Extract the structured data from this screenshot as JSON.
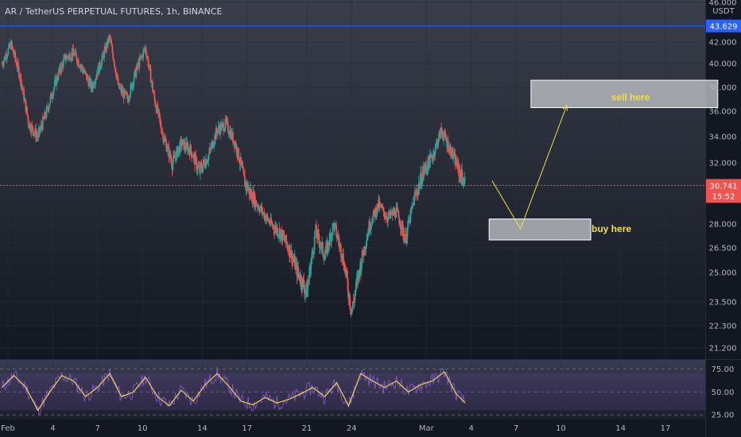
{
  "header": {
    "title": "AR / TetherUS PERPETUAL FUTURES, 1h, BINANCE"
  },
  "colors": {
    "up": "#26a69a",
    "down": "#ef5350",
    "bg": "#131722",
    "line": "#f0e040",
    "rsi": "#7e57c2",
    "blue": "#2962ff"
  },
  "chart_data": [
    {
      "type": "candlestick",
      "title": "AR / TetherUS PERPETUAL FUTURES, 1h, BINANCE",
      "y_unit": "USDT",
      "ylim": [
        20.5,
        46.0
      ],
      "x_domain": [
        0,
        46
      ],
      "y_ticks": [
        "46.000",
        "42.000",
        "40.000",
        "38.000",
        "36.000",
        "34.000",
        "32.000",
        "30.000",
        "28.000",
        "26.500",
        "25.000",
        "23.500",
        "22.300",
        "21.200"
      ],
      "y_tick_values": [
        46.0,
        42.0,
        40.0,
        38.0,
        36.0,
        34.0,
        32.0,
        30.0,
        28.0,
        26.5,
        25.0,
        23.5,
        22.3,
        21.2
      ],
      "x_ticks": [
        {
          "label": "Feb",
          "day": 1
        },
        {
          "label": "4",
          "day": 4
        },
        {
          "label": "7",
          "day": 7
        },
        {
          "label": "10",
          "day": 10
        },
        {
          "label": "14",
          "day": 14
        },
        {
          "label": "17",
          "day": 17
        },
        {
          "label": "21",
          "day": 21
        },
        {
          "label": "24",
          "day": 24
        },
        {
          "label": "Mar",
          "day": 29
        },
        {
          "label": "4",
          "day": 32
        },
        {
          "label": "7",
          "day": 35
        },
        {
          "label": "10",
          "day": 38
        },
        {
          "label": "14",
          "day": 42
        },
        {
          "label": "17",
          "day": 45
        }
      ],
      "close_path": [
        [
          0.6,
          40.0
        ],
        [
          1.2,
          41.8
        ],
        [
          1.8,
          39.0
        ],
        [
          2.4,
          35.0
        ],
        [
          3.0,
          34.0
        ],
        [
          3.6,
          36.0
        ],
        [
          4.2,
          38.5
        ],
        [
          4.8,
          40.5
        ],
        [
          5.4,
          41.0
        ],
        [
          6.0,
          39.5
        ],
        [
          6.6,
          38.0
        ],
        [
          7.2,
          40.0
        ],
        [
          7.8,
          42.5
        ],
        [
          8.4,
          38.0
        ],
        [
          9.0,
          37.0
        ],
        [
          9.6,
          39.5
        ],
        [
          10.2,
          41.5
        ],
        [
          10.8,
          37.0
        ],
        [
          11.4,
          34.0
        ],
        [
          12.0,
          32.0
        ],
        [
          12.6,
          33.5
        ],
        [
          13.2,
          33.0
        ],
        [
          13.8,
          31.5
        ],
        [
          14.4,
          32.5
        ],
        [
          15.0,
          34.5
        ],
        [
          15.6,
          35.0
        ],
        [
          16.2,
          33.5
        ],
        [
          16.8,
          31.0
        ],
        [
          17.4,
          30.0
        ],
        [
          18.0,
          29.0
        ],
        [
          18.6,
          28.0
        ],
        [
          19.2,
          27.5
        ],
        [
          19.8,
          26.5
        ],
        [
          20.4,
          25.0
        ],
        [
          21.0,
          24.0
        ],
        [
          21.6,
          27.5
        ],
        [
          22.2,
          26.0
        ],
        [
          22.8,
          28.0
        ],
        [
          23.4,
          26.0
        ],
        [
          24.0,
          23.0
        ],
        [
          24.6,
          25.5
        ],
        [
          25.2,
          28.0
        ],
        [
          25.8,
          29.5
        ],
        [
          26.4,
          28.5
        ],
        [
          27.0,
          29.0
        ],
        [
          27.6,
          27.0
        ],
        [
          28.2,
          30.0
        ],
        [
          28.8,
          31.5
        ],
        [
          29.4,
          32.5
        ],
        [
          30.0,
          34.5
        ],
        [
          30.6,
          33.0
        ],
        [
          31.2,
          31.5
        ],
        [
          31.6,
          30.8
        ]
      ],
      "current_price": "30.741",
      "current_price_value": 30.741,
      "countdown": "15:52",
      "upper_price": "43.629",
      "upper_price_value": 43.629
    },
    {
      "type": "line",
      "name": "RSI",
      "ylim": [
        20,
        85
      ],
      "y_ticks": [
        "75.00",
        "50.00",
        "25.00"
      ],
      "y_tick_values": [
        75,
        50,
        25
      ],
      "band": [
        30,
        70
      ],
      "rsi_points": [
        [
          0.6,
          55
        ],
        [
          1.4,
          68
        ],
        [
          2.2,
          55
        ],
        [
          3.0,
          30
        ],
        [
          3.8,
          50
        ],
        [
          4.6,
          68
        ],
        [
          5.4,
          62
        ],
        [
          6.2,
          45
        ],
        [
          7.0,
          55
        ],
        [
          7.8,
          70
        ],
        [
          8.6,
          45
        ],
        [
          9.4,
          50
        ],
        [
          10.2,
          66
        ],
        [
          11.0,
          45
        ],
        [
          11.8,
          35
        ],
        [
          12.6,
          52
        ],
        [
          13.4,
          40
        ],
        [
          14.2,
          58
        ],
        [
          15.0,
          70
        ],
        [
          15.8,
          56
        ],
        [
          16.6,
          40
        ],
        [
          17.4,
          36
        ],
        [
          18.2,
          44
        ],
        [
          19.0,
          38
        ],
        [
          19.8,
          42
        ],
        [
          20.6,
          48
        ],
        [
          21.4,
          55
        ],
        [
          22.2,
          45
        ],
        [
          23.0,
          60
        ],
        [
          23.8,
          35
        ],
        [
          24.6,
          70
        ],
        [
          25.4,
          62
        ],
        [
          26.2,
          55
        ],
        [
          27.0,
          62
        ],
        [
          27.8,
          50
        ],
        [
          28.6,
          58
        ],
        [
          29.4,
          62
        ],
        [
          30.2,
          72
        ],
        [
          31.0,
          48
        ],
        [
          31.6,
          38
        ]
      ]
    }
  ],
  "annotations": {
    "sell_label": "sell here",
    "buy_label": "buy here",
    "sell_zone": [
      36.3,
      38.6
    ],
    "buy_zone": [
      27.0,
      28.4
    ],
    "sell_x": [
      36.0,
      48.5
    ],
    "buy_x": [
      33.2,
      40.0
    ],
    "projection": [
      [
        33.4,
        31.0
      ],
      [
        35.3,
        27.7
      ],
      [
        38.4,
        36.5
      ]
    ]
  }
}
